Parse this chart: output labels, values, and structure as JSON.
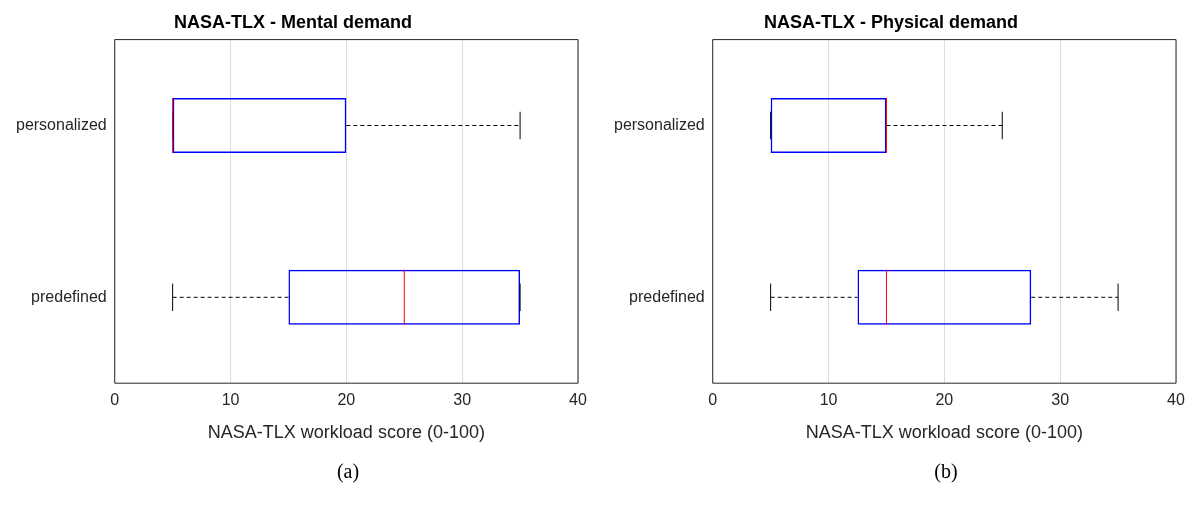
{
  "chart_data": [
    {
      "type": "box",
      "title": "NASA-TLX - Mental demand",
      "xlabel": "NASA-TLX workload score (0-100)",
      "orientation": "horizontal",
      "categories": [
        "personalized",
        "predefined"
      ],
      "color": "#0000ff",
      "boxes": [
        {
          "low": 5,
          "q1": 5,
          "median": 5,
          "q3": 20,
          "high": 35
        },
        {
          "low": 5,
          "q1": 15,
          "median": 25,
          "q3": 35,
          "high": 35
        }
      ],
      "xlim": [
        0,
        40
      ],
      "xticks": [
        0,
        10,
        20,
        30,
        40
      ],
      "grid": "x",
      "annotations": [
        "(a)"
      ]
    },
    {
      "type": "box",
      "title": "NASA-TLX - Physical demand",
      "xlabel": "NASA-TLX workload score (0-100)",
      "orientation": "horizontal",
      "categories": [
        "personalized",
        "predefined"
      ],
      "color": "#0000ff",
      "boxes": [
        {
          "low": 5,
          "q1": 5,
          "median": 15,
          "q3": 15,
          "high": 25
        },
        {
          "low": 5,
          "q1": 12.5,
          "median": 15,
          "q3": 27.5,
          "high": 35
        }
      ],
      "xlim": [
        0,
        40
      ],
      "xticks": [
        0,
        10,
        20,
        30,
        40
      ],
      "grid": "x",
      "annotations": [
        "(b)"
      ]
    }
  ]
}
